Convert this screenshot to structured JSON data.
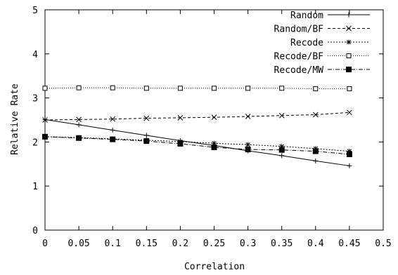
{
  "chart_data": {
    "type": "line",
    "title": "",
    "xlabel": "Correlation",
    "ylabel": "Relative Rate",
    "xlim": [
      0,
      0.5
    ],
    "ylim": [
      0,
      5
    ],
    "xticks": [
      "0",
      "0.05",
      "0.1",
      "0.15",
      "0.2",
      "0.25",
      "0.3",
      "0.35",
      "0.4",
      "0.45",
      "0.5"
    ],
    "yticks": [
      "0",
      "1",
      "2",
      "3",
      "4",
      "5"
    ],
    "grid": false,
    "legend_position": "top-right",
    "x": [
      0,
      0.05,
      0.1,
      0.15,
      0.2,
      0.25,
      0.3,
      0.35,
      0.4,
      0.45
    ],
    "series": [
      {
        "name": "Random",
        "marker": "plus",
        "dash": "solid",
        "color": "#000000",
        "values": [
          2.51,
          2.39,
          2.27,
          2.15,
          2.03,
          1.92,
          1.8,
          1.69,
          1.57,
          1.46
        ]
      },
      {
        "name": "Random/BF",
        "marker": "cross",
        "dash": "dashed",
        "color": "#000000",
        "values": [
          2.5,
          2.51,
          2.52,
          2.54,
          2.55,
          2.56,
          2.58,
          2.6,
          2.62,
          2.67
        ]
      },
      {
        "name": "Recode",
        "marker": "star",
        "dash": "dotted",
        "color": "#000000",
        "values": [
          2.12,
          2.1,
          2.07,
          2.04,
          2.01,
          1.97,
          1.94,
          1.9,
          1.85,
          1.79
        ]
      },
      {
        "name": "Recode/BF",
        "marker": "open-square",
        "dash": "dotted-fine",
        "color": "#000000",
        "values": [
          3.22,
          3.23,
          3.23,
          3.22,
          3.22,
          3.22,
          3.22,
          3.22,
          3.21,
          3.21
        ]
      },
      {
        "name": "Recode/MW",
        "marker": "filled-square",
        "dash": "dash-dot",
        "color": "#000000",
        "values": [
          2.12,
          2.09,
          2.06,
          2.02,
          1.96,
          1.88,
          1.83,
          1.82,
          1.79,
          1.72
        ]
      }
    ]
  }
}
